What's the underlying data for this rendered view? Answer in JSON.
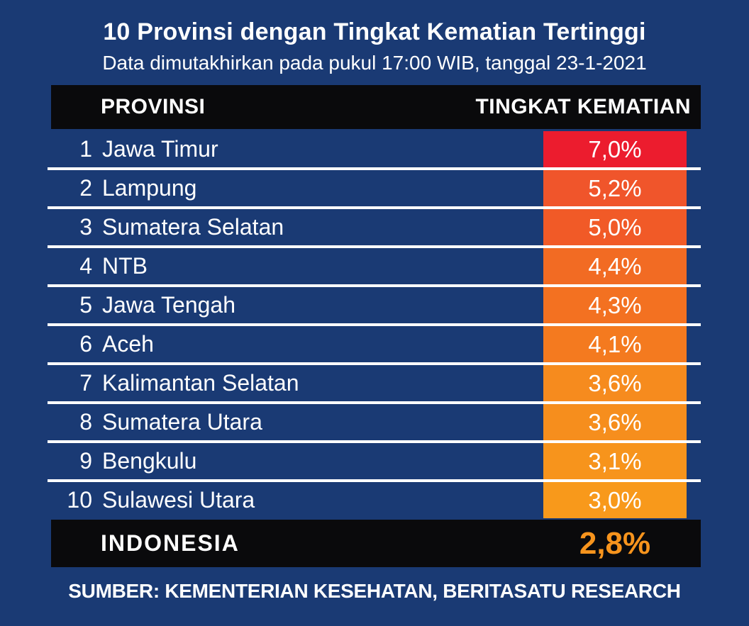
{
  "title": "10 Provinsi dengan Tingkat Kematian Tertinggi",
  "subtitle": "Data dimutakhirkan pada pukul 17:00 WIB, tanggal 23-1-2021",
  "table": {
    "col_province": "PROVINSI",
    "col_rate": "TINGKAT KEMATIAN",
    "rows": [
      {
        "rank": "1",
        "province": "Jawa Timur",
        "rate": "7,0%",
        "cell_color": "#EC1C2E"
      },
      {
        "rank": "2",
        "province": "Lampung",
        "rate": "5,2%",
        "cell_color": "#F0552B"
      },
      {
        "rank": "3",
        "province": "Sumatera Selatan",
        "rate": "5,0%",
        "cell_color": "#F15A27"
      },
      {
        "rank": "4",
        "province": "NTB",
        "rate": "4,4%",
        "cell_color": "#F26B23"
      },
      {
        "rank": "5",
        "province": "Jawa Tengah",
        "rate": "4,3%",
        "cell_color": "#F37121"
      },
      {
        "rank": "6",
        "province": "Aceh",
        "rate": "4,1%",
        "cell_color": "#F47A1F"
      },
      {
        "rank": "7",
        "province": "Kalimantan Selatan",
        "rate": "3,6%",
        "cell_color": "#F68B1E"
      },
      {
        "rank": "8",
        "province": "Sumatera Utara",
        "rate": "3,6%",
        "cell_color": "#F68E1D"
      },
      {
        "rank": "9",
        "province": "Bengkulu",
        "rate": "3,1%",
        "cell_color": "#F7941C"
      },
      {
        "rank": "10",
        "province": "Sulawesi Utara",
        "rate": "3,0%",
        "cell_color": "#F8991B"
      }
    ],
    "footer": {
      "label": "INDONESIA",
      "rate": "2,8%",
      "rate_color": "#F7941D"
    }
  },
  "source": "SUMBER: KEMENTERIAN KESEHATAN, BERITASATU RESEARCH",
  "colors": {
    "background": "#1A3A74",
    "bar_black": "#0A0A0C",
    "text_white": "#FFFFFF",
    "divider_white": "#FFFFFF",
    "top_rate_red": "#EC1C2E",
    "footer_rate_orange": "#F7941D"
  },
  "chart_data": {
    "type": "table",
    "title": "10 Provinsi dengan Tingkat Kematian Tertinggi",
    "subtitle": "Data dimutakhirkan pada pukul 17:00 WIB, tanggal 23-1-2021",
    "columns": [
      "PROVINSI",
      "TINGKAT KEMATIAN"
    ],
    "categories": [
      "Jawa Timur",
      "Lampung",
      "Sumatera Selatan",
      "NTB",
      "Jawa Tengah",
      "Aceh",
      "Kalimantan Selatan",
      "Sumatera Utara",
      "Bengkulu",
      "Sulawesi Utara"
    ],
    "values": [
      7.0,
      5.2,
      5.0,
      4.4,
      4.3,
      4.1,
      3.6,
      3.6,
      3.1,
      3.0
    ],
    "value_unit": "%",
    "national_total": {
      "label": "INDONESIA",
      "value": 2.8
    },
    "source": "SUMBER: KEMENTERIAN KESEHATAN, BERITASATU RESEARCH",
    "color_encoding": "red (highest) to light orange (lowest)"
  }
}
